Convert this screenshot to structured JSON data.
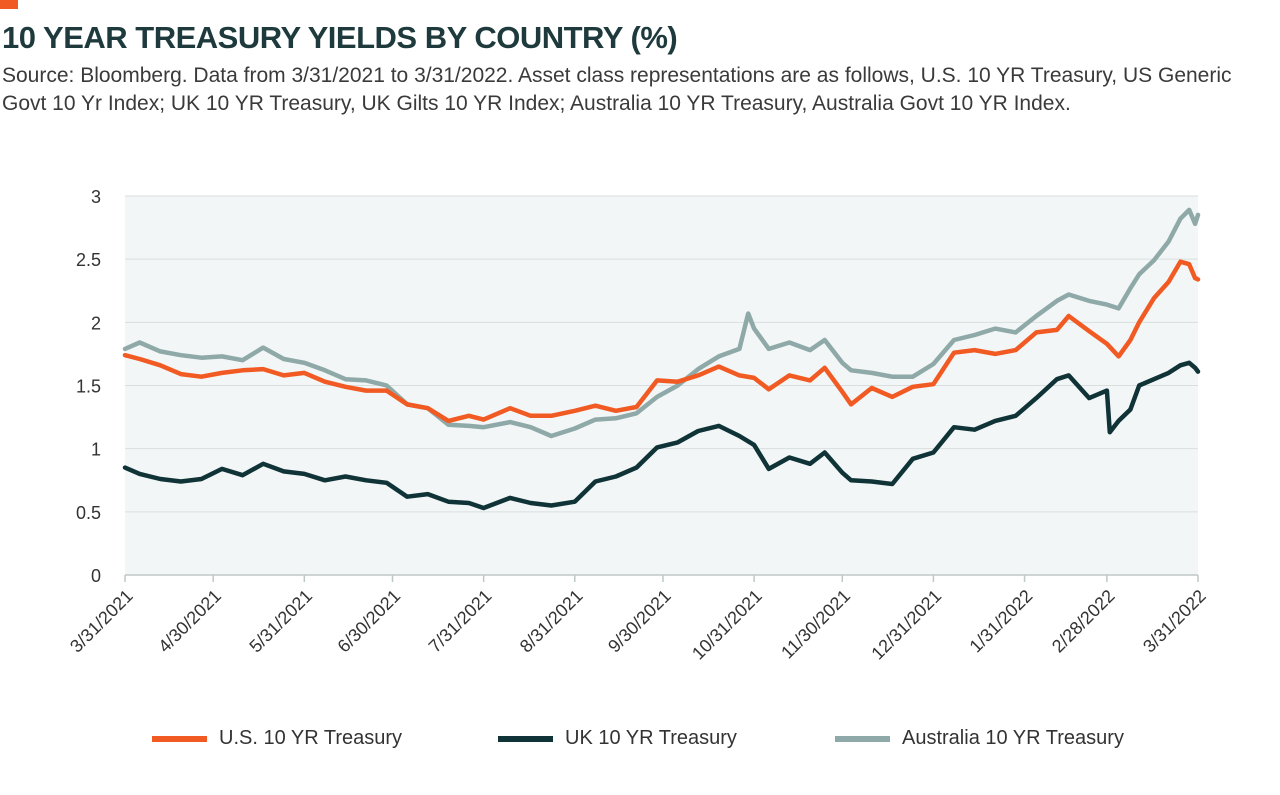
{
  "title": "10 YEAR TREASURY YIELDS BY COUNTRY (%)",
  "source": "Source: Bloomberg. Data from 3/31/2021 to 3/31/2022. Asset class representations are as follows, U.S. 10 YR Treasury, US Generic Govt 10 Yr Index; UK 10 YR Treasury, UK Gilts 10 YR Index; Australia 10 YR Treasury, Australia Govt 10 YR Index.",
  "colors": {
    "accent": "#f15a22",
    "us": "#f15a22",
    "uk": "#0f3336",
    "australia": "#8fa9a8",
    "plot_bg": "#f2f6f6",
    "grid": "#d9dede"
  },
  "chart_data": {
    "type": "line",
    "title": "10 YEAR TREASURY YIELDS BY COUNTRY (%)",
    "xlabel": "",
    "ylabel": "",
    "ylim": [
      0,
      3
    ],
    "yticks": [
      0,
      0.5,
      1,
      1.5,
      2,
      2.5,
      3
    ],
    "ytick_labels": [
      "0",
      "0.5",
      "1",
      "1.5",
      "2",
      "2.5",
      "3"
    ],
    "xticks": [
      "3/31/2021",
      "4/30/2021",
      "5/31/2021",
      "6/30/2021",
      "7/31/2021",
      "8/31/2021",
      "9/30/2021",
      "10/31/2021",
      "11/30/2021",
      "12/31/2021",
      "1/31/2022",
      "2/28/2022",
      "3/31/2022"
    ],
    "grid": "horizontal",
    "legend": "bottom",
    "series": [
      {
        "name": "U.S. 10 YR Treasury",
        "color": "#f15a22",
        "points": [
          [
            "3/31/2021",
            1.74
          ],
          [
            "4/5/2021",
            1.71
          ],
          [
            "4/12/2021",
            1.66
          ],
          [
            "4/19/2021",
            1.59
          ],
          [
            "4/26/2021",
            1.57
          ],
          [
            "5/3/2021",
            1.6
          ],
          [
            "5/10/2021",
            1.62
          ],
          [
            "5/17/2021",
            1.63
          ],
          [
            "5/24/2021",
            1.58
          ],
          [
            "5/31/2021",
            1.6
          ],
          [
            "6/7/2021",
            1.53
          ],
          [
            "6/14/2021",
            1.49
          ],
          [
            "6/21/2021",
            1.46
          ],
          [
            "6/28/2021",
            1.46
          ],
          [
            "7/5/2021",
            1.35
          ],
          [
            "7/12/2021",
            1.32
          ],
          [
            "7/19/2021",
            1.22
          ],
          [
            "7/26/2021",
            1.26
          ],
          [
            "7/31/2021",
            1.23
          ],
          [
            "8/9/2021",
            1.32
          ],
          [
            "8/16/2021",
            1.26
          ],
          [
            "8/23/2021",
            1.26
          ],
          [
            "8/31/2021",
            1.3
          ],
          [
            "9/7/2021",
            1.34
          ],
          [
            "9/14/2021",
            1.3
          ],
          [
            "9/21/2021",
            1.33
          ],
          [
            "9/28/2021",
            1.54
          ],
          [
            "10/5/2021",
            1.53
          ],
          [
            "10/12/2021",
            1.58
          ],
          [
            "10/19/2021",
            1.65
          ],
          [
            "10/26/2021",
            1.58
          ],
          [
            "10/31/2021",
            1.56
          ],
          [
            "11/5/2021",
            1.47
          ],
          [
            "11/12/2021",
            1.58
          ],
          [
            "11/19/2021",
            1.54
          ],
          [
            "11/24/2021",
            1.64
          ],
          [
            "11/30/2021",
            1.45
          ],
          [
            "12/3/2021",
            1.35
          ],
          [
            "12/10/2021",
            1.48
          ],
          [
            "12/17/2021",
            1.41
          ],
          [
            "12/24/2021",
            1.49
          ],
          [
            "12/31/2021",
            1.51
          ],
          [
            "1/7/2022",
            1.76
          ],
          [
            "1/14/2022",
            1.78
          ],
          [
            "1/21/2022",
            1.75
          ],
          [
            "1/28/2022",
            1.78
          ],
          [
            "2/4/2022",
            1.92
          ],
          [
            "2/11/2022",
            1.94
          ],
          [
            "2/15/2022",
            2.05
          ],
          [
            "2/22/2022",
            1.93
          ],
          [
            "2/28/2022",
            1.83
          ],
          [
            "3/4/2022",
            1.73
          ],
          [
            "3/8/2022",
            1.86
          ],
          [
            "3/11/2022",
            2.0
          ],
          [
            "3/16/2022",
            2.19
          ],
          [
            "3/21/2022",
            2.32
          ],
          [
            "3/25/2022",
            2.48
          ],
          [
            "3/28/2022",
            2.46
          ],
          [
            "3/30/2022",
            2.35
          ],
          [
            "3/31/2022",
            2.34
          ]
        ]
      },
      {
        "name": "UK 10 YR Treasury",
        "color": "#0f3336",
        "points": [
          [
            "3/31/2021",
            0.85
          ],
          [
            "4/5/2021",
            0.8
          ],
          [
            "4/12/2021",
            0.76
          ],
          [
            "4/19/2021",
            0.74
          ],
          [
            "4/26/2021",
            0.76
          ],
          [
            "5/3/2021",
            0.84
          ],
          [
            "5/10/2021",
            0.79
          ],
          [
            "5/17/2021",
            0.88
          ],
          [
            "5/24/2021",
            0.82
          ],
          [
            "5/31/2021",
            0.8
          ],
          [
            "6/7/2021",
            0.75
          ],
          [
            "6/14/2021",
            0.78
          ],
          [
            "6/21/2021",
            0.75
          ],
          [
            "6/28/2021",
            0.73
          ],
          [
            "7/5/2021",
            0.62
          ],
          [
            "7/12/2021",
            0.64
          ],
          [
            "7/19/2021",
            0.58
          ],
          [
            "7/26/2021",
            0.57
          ],
          [
            "7/31/2021",
            0.53
          ],
          [
            "8/9/2021",
            0.61
          ],
          [
            "8/16/2021",
            0.57
          ],
          [
            "8/23/2021",
            0.55
          ],
          [
            "8/31/2021",
            0.58
          ],
          [
            "9/7/2021",
            0.74
          ],
          [
            "9/14/2021",
            0.78
          ],
          [
            "9/21/2021",
            0.85
          ],
          [
            "9/28/2021",
            1.01
          ],
          [
            "10/5/2021",
            1.05
          ],
          [
            "10/12/2021",
            1.14
          ],
          [
            "10/19/2021",
            1.18
          ],
          [
            "10/26/2021",
            1.1
          ],
          [
            "10/31/2021",
            1.03
          ],
          [
            "11/5/2021",
            0.84
          ],
          [
            "11/12/2021",
            0.93
          ],
          [
            "11/19/2021",
            0.88
          ],
          [
            "11/24/2021",
            0.97
          ],
          [
            "11/30/2021",
            0.81
          ],
          [
            "12/3/2021",
            0.75
          ],
          [
            "12/10/2021",
            0.74
          ],
          [
            "12/17/2021",
            0.72
          ],
          [
            "12/24/2021",
            0.92
          ],
          [
            "12/31/2021",
            0.97
          ],
          [
            "1/7/2022",
            1.17
          ],
          [
            "1/14/2022",
            1.15
          ],
          [
            "1/21/2022",
            1.22
          ],
          [
            "1/28/2022",
            1.26
          ],
          [
            "2/4/2022",
            1.4
          ],
          [
            "2/11/2022",
            1.55
          ],
          [
            "2/15/2022",
            1.58
          ],
          [
            "2/22/2022",
            1.4
          ],
          [
            "2/28/2022",
            1.46
          ],
          [
            "3/1/2022",
            1.13
          ],
          [
            "3/4/2022",
            1.22
          ],
          [
            "3/8/2022",
            1.31
          ],
          [
            "3/11/2022",
            1.5
          ],
          [
            "3/16/2022",
            1.55
          ],
          [
            "3/21/2022",
            1.6
          ],
          [
            "3/25/2022",
            1.66
          ],
          [
            "3/28/2022",
            1.68
          ],
          [
            "3/30/2022",
            1.64
          ],
          [
            "3/31/2022",
            1.61
          ]
        ]
      },
      {
        "name": "Australia 10 YR Treasury",
        "color": "#8fa9a8",
        "points": [
          [
            "3/31/2021",
            1.79
          ],
          [
            "4/5/2021",
            1.84
          ],
          [
            "4/12/2021",
            1.77
          ],
          [
            "4/19/2021",
            1.74
          ],
          [
            "4/26/2021",
            1.72
          ],
          [
            "5/3/2021",
            1.73
          ],
          [
            "5/10/2021",
            1.7
          ],
          [
            "5/17/2021",
            1.8
          ],
          [
            "5/24/2021",
            1.71
          ],
          [
            "5/31/2021",
            1.68
          ],
          [
            "6/7/2021",
            1.62
          ],
          [
            "6/14/2021",
            1.55
          ],
          [
            "6/21/2021",
            1.54
          ],
          [
            "6/28/2021",
            1.5
          ],
          [
            "7/5/2021",
            1.35
          ],
          [
            "7/12/2021",
            1.32
          ],
          [
            "7/19/2021",
            1.19
          ],
          [
            "7/26/2021",
            1.18
          ],
          [
            "7/31/2021",
            1.17
          ],
          [
            "8/9/2021",
            1.21
          ],
          [
            "8/16/2021",
            1.17
          ],
          [
            "8/23/2021",
            1.1
          ],
          [
            "8/31/2021",
            1.16
          ],
          [
            "9/7/2021",
            1.23
          ],
          [
            "9/14/2021",
            1.24
          ],
          [
            "9/21/2021",
            1.28
          ],
          [
            "9/28/2021",
            1.41
          ],
          [
            "10/5/2021",
            1.5
          ],
          [
            "10/12/2021",
            1.63
          ],
          [
            "10/19/2021",
            1.73
          ],
          [
            "10/26/2021",
            1.79
          ],
          [
            "10/29/2021",
            2.07
          ],
          [
            "10/31/2021",
            1.95
          ],
          [
            "11/5/2021",
            1.79
          ],
          [
            "11/12/2021",
            1.84
          ],
          [
            "11/19/2021",
            1.78
          ],
          [
            "11/24/2021",
            1.86
          ],
          [
            "11/30/2021",
            1.68
          ],
          [
            "12/3/2021",
            1.62
          ],
          [
            "12/10/2021",
            1.6
          ],
          [
            "12/17/2021",
            1.57
          ],
          [
            "12/24/2021",
            1.57
          ],
          [
            "12/31/2021",
            1.67
          ],
          [
            "1/7/2022",
            1.86
          ],
          [
            "1/14/2022",
            1.9
          ],
          [
            "1/21/2022",
            1.95
          ],
          [
            "1/28/2022",
            1.92
          ],
          [
            "2/4/2022",
            2.05
          ],
          [
            "2/11/2022",
            2.17
          ],
          [
            "2/15/2022",
            2.22
          ],
          [
            "2/22/2022",
            2.17
          ],
          [
            "2/28/2022",
            2.14
          ],
          [
            "3/4/2022",
            2.11
          ],
          [
            "3/8/2022",
            2.27
          ],
          [
            "3/11/2022",
            2.38
          ],
          [
            "3/16/2022",
            2.49
          ],
          [
            "3/21/2022",
            2.64
          ],
          [
            "3/25/2022",
            2.82
          ],
          [
            "3/28/2022",
            2.89
          ],
          [
            "3/30/2022",
            2.78
          ],
          [
            "3/31/2022",
            2.85
          ]
        ]
      }
    ]
  }
}
